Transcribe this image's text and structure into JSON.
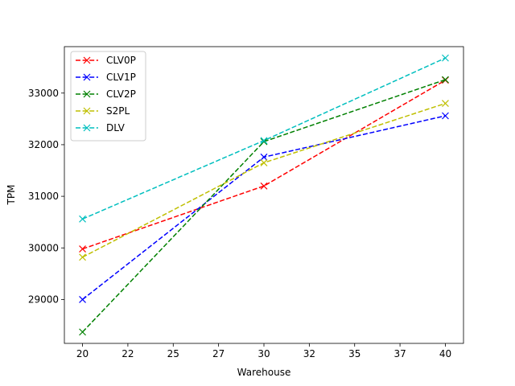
{
  "chart_data": {
    "type": "line",
    "title": "",
    "xlabel": "Warehouse",
    "ylabel": "TPM",
    "x": [
      20,
      30,
      40
    ],
    "xlim": [
      19,
      41
    ],
    "ylim": [
      28150,
      33900
    ],
    "xtick_values": [
      20,
      22.5,
      25,
      27.5,
      30,
      32.5,
      35,
      37.5,
      40
    ],
    "xtick_labels": [
      "20",
      "22",
      "25",
      "27",
      "30",
      "32",
      "35",
      "37",
      "40"
    ],
    "ytick_values": [
      29000,
      30000,
      31000,
      32000,
      33000
    ],
    "ytick_labels": [
      "29000",
      "30000",
      "31000",
      "32000",
      "33000"
    ],
    "grid": false,
    "legend": "upper-left",
    "marker": "x",
    "line_style": "dashed",
    "series": [
      {
        "name": "CLV0P",
        "color": "#ff0000",
        "values": [
          29980,
          31200,
          33250
        ]
      },
      {
        "name": "CLV1P",
        "color": "#0000ff",
        "values": [
          29000,
          31760,
          32560
        ]
      },
      {
        "name": "CLV2P",
        "color": "#008000",
        "values": [
          28370,
          32060,
          33260
        ]
      },
      {
        "name": "S2PL",
        "color": "#bfbf00",
        "values": [
          29820,
          31650,
          32800
        ]
      },
      {
        "name": "DLV",
        "color": "#00bfbf",
        "values": [
          30560,
          32080,
          33680
        ]
      }
    ]
  }
}
